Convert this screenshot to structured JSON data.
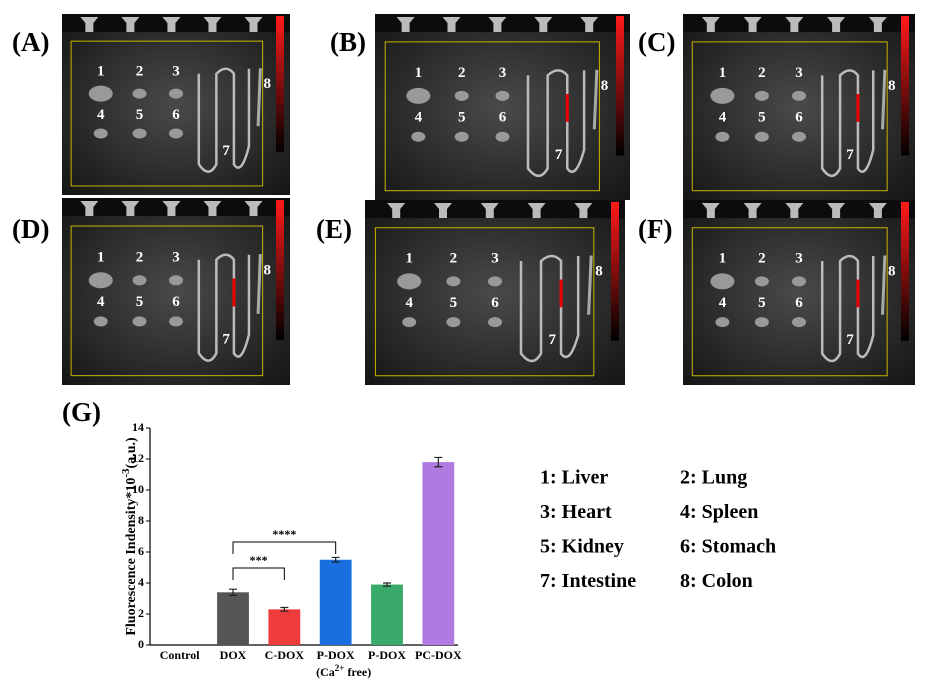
{
  "panels": [
    {
      "label": "(A)",
      "organs": [
        "1",
        "2",
        "3",
        "4",
        "5",
        "6",
        "7",
        "8"
      ]
    },
    {
      "label": "(B)",
      "organs": [
        "1",
        "2",
        "3",
        "4",
        "5",
        "6",
        "7",
        "8"
      ]
    },
    {
      "label": "(C)",
      "organs": [
        "1",
        "2",
        "3",
        "4",
        "5",
        "6",
        "7",
        "8"
      ]
    },
    {
      "label": "(D)",
      "organs": [
        "1",
        "2",
        "3",
        "4",
        "5",
        "6",
        "7",
        "8"
      ]
    },
    {
      "label": "(E)",
      "organs": [
        "1",
        "2",
        "3",
        "4",
        "5",
        "6",
        "7",
        "8"
      ]
    },
    {
      "label": "(F)",
      "organs": [
        "1",
        "2",
        "3",
        "4",
        "5",
        "6",
        "7",
        "8"
      ]
    }
  ],
  "chart_data": {
    "type": "bar",
    "panel_label": "(G)",
    "ylabel": [
      "Fluorescence Indensity*10",
      "-3",
      "(a.u.)"
    ],
    "categories": [
      "Control",
      "DOX",
      "C-DOX",
      "P-DOX",
      "P-DOX",
      "PC-DOX"
    ],
    "category_note": {
      "index": 3,
      "parts": [
        "(Ca",
        "2+",
        " free)"
      ]
    },
    "values": [
      0,
      3.4,
      2.3,
      5.5,
      3.9,
      11.8
    ],
    "errors": [
      null,
      0.2,
      0.12,
      0.15,
      0.1,
      0.3
    ],
    "colors": [
      "#555555",
      "#ee3b3b",
      "#1a6fe0",
      "#3aaa6a",
      "#b07be0"
    ],
    "ylim": [
      0,
      14
    ],
    "yticks": [
      0,
      2,
      4,
      6,
      8,
      10,
      12,
      14
    ],
    "significance": [
      {
        "from": 1,
        "to": 2,
        "label": "***"
      },
      {
        "from": 1,
        "to": 3,
        "label": "****"
      }
    ]
  },
  "legend": [
    "1: Liver",
    "2: Lung",
    "3: Heart",
    "4: Spleen",
    "5: Kidney",
    "6: Stomach",
    "7: Intestine",
    "8: Colon"
  ]
}
